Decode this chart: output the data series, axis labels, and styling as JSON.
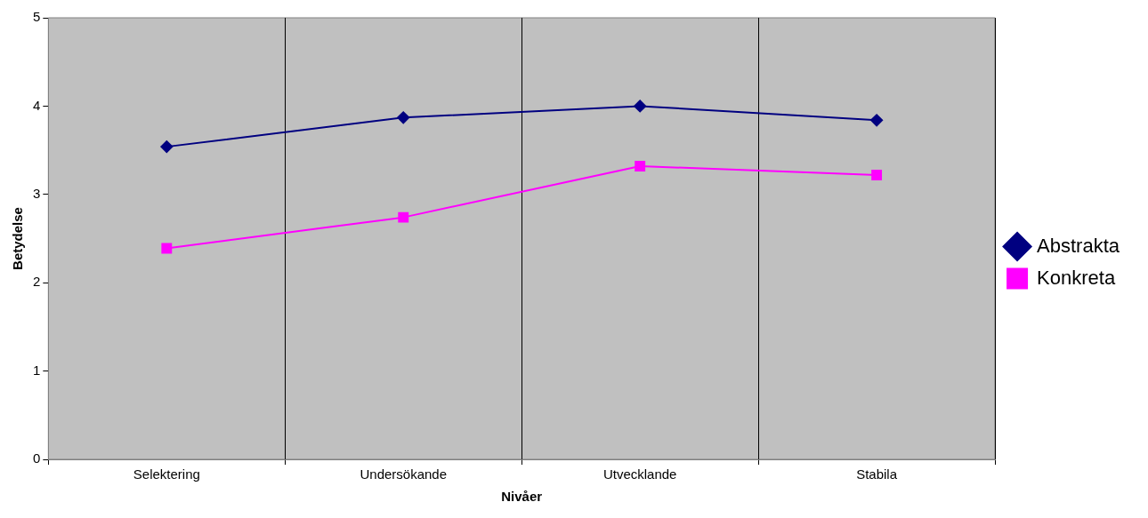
{
  "chart_data": {
    "type": "line",
    "xlabel": "Nivåer",
    "ylabel": "Betydelse",
    "categories": [
      "Selektering",
      "Undersökande",
      "Utvecklande",
      "Stabila"
    ],
    "series": [
      {
        "name": "Abstrakta",
        "color": "#000080",
        "marker": "diamond",
        "values": [
          3.54,
          3.87,
          4.0,
          3.84
        ]
      },
      {
        "name": "Konkreta",
        "color": "#ff00ff",
        "marker": "square",
        "values": [
          2.39,
          2.74,
          3.32,
          3.22
        ]
      }
    ],
    "ylim": [
      0,
      5
    ],
    "yticks": [
      0,
      1,
      2,
      3,
      4,
      5
    ],
    "grid": "x",
    "legend": "right"
  }
}
